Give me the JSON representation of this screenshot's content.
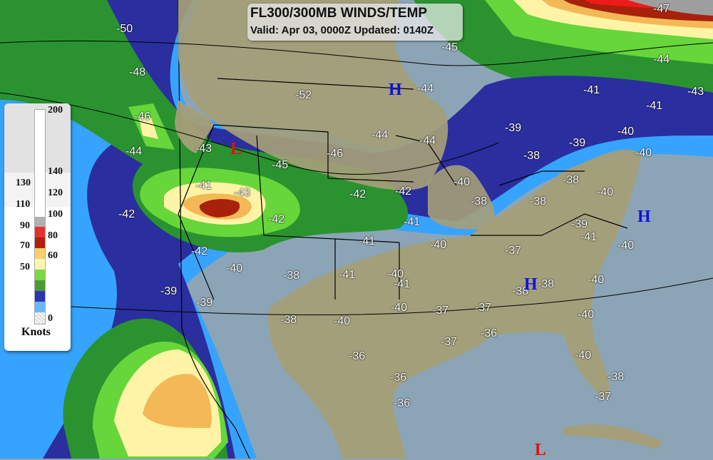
{
  "title": {
    "line1": "FL300/300MB WINDS/TEMP",
    "line2": "Valid: Apr 03, 0000Z Updated: 0140Z"
  },
  "legend": {
    "unit": "Knots",
    "right_labels": [
      "200",
      "140",
      "120",
      "100",
      "80",
      "60",
      "0"
    ],
    "left_labels": [
      "130",
      "110",
      "90",
      "70",
      "50"
    ],
    "colors": {
      "50-60": "#6ab8f5",
      "60-70": "#2a36b0",
      "70-80": "#4a9a38",
      "80-90": "#7ad840",
      "90-100": "#fff5b0",
      "100-110": "#fdcf6a",
      "110-120": "#b0200c",
      "120-130": "#e8302a",
      "130-140": "#b0b0b0",
      "140-200": "#ffffff"
    }
  },
  "map_colors": {
    "ocean": "#8ca5b6",
    "land": "#a59e78",
    "wind50": "#36a4ff",
    "wind60": "#2b2e9e",
    "wind70": "#2a9330",
    "wind80": "#66d63a",
    "wind90": "#fff3a6",
    "wind100": "#f3b957",
    "wind110": "#a8210a",
    "wind120": "#ee1b1b",
    "wind130": "#9e9e9e"
  },
  "temperatures": [
    "-50",
    "-48",
    "-46",
    "-44",
    "-43",
    "-52",
    "-44",
    "-45",
    "-47",
    "-44",
    "-41",
    "-43",
    "-41",
    "-39",
    "-40",
    "-40",
    "-39",
    "-38",
    "-44",
    "-44",
    "-46",
    "-45",
    "-41",
    "-43",
    "-42",
    "-42",
    "-40",
    "-38",
    "-38",
    "-38",
    "-40",
    "-42",
    "-42",
    "-41",
    "-39",
    "-41",
    "-40",
    "-40",
    "-37",
    "-41",
    "-42",
    "-40",
    "-38",
    "-41",
    "-40",
    "-41",
    "-40",
    "-38",
    "-38",
    "-39",
    "-39",
    "-40",
    "-37",
    "-37",
    "-40",
    "-38",
    "-40",
    "-36",
    "-37",
    "-36",
    "-40",
    "-38",
    "-36",
    "-37",
    "-36"
  ],
  "pressure_centers": [
    {
      "label": "H",
      "color": "#1010e0"
    },
    {
      "label": "H",
      "color": "#1010e0"
    },
    {
      "label": "H",
      "color": "#1010e0"
    },
    {
      "label": "L",
      "color": "#e01010"
    },
    {
      "label": "L",
      "color": "#e01010"
    }
  ]
}
